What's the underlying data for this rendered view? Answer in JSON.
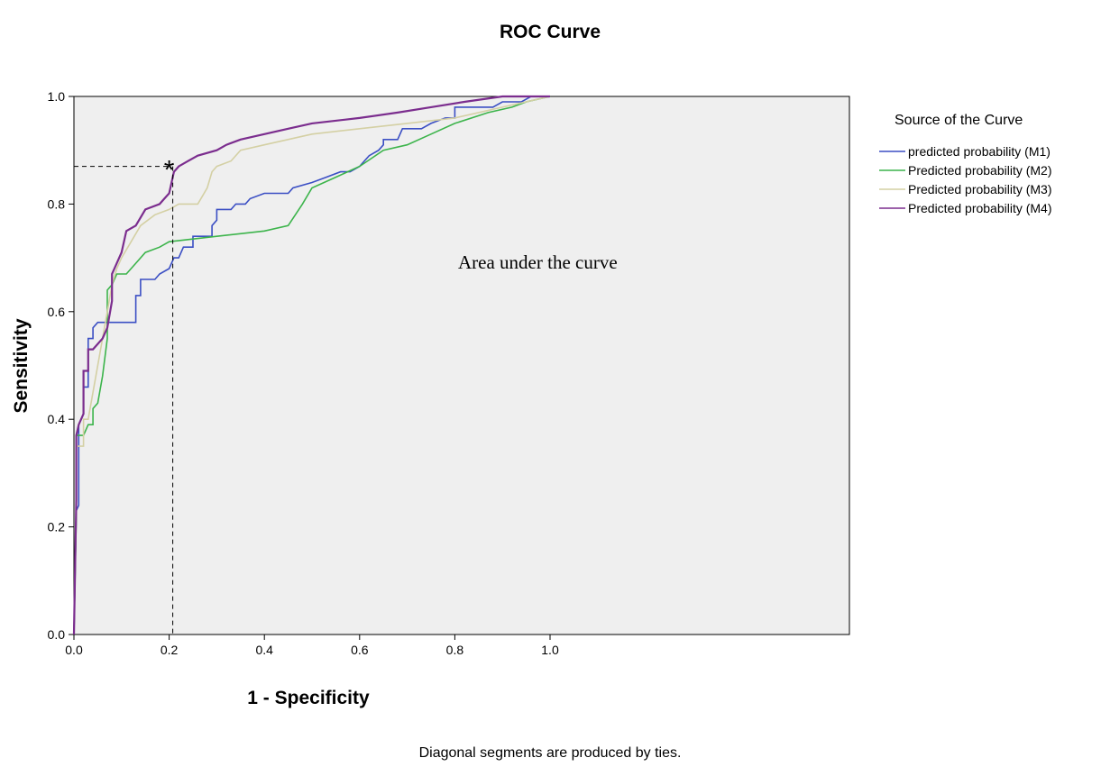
{
  "chart_data": {
    "type": "line",
    "title": "ROC Curve",
    "xlabel": "1 - Specificity",
    "ylabel": "Sensitivity",
    "xlim": [
      0,
      1.0
    ],
    "ylim": [
      0,
      1.0
    ],
    "x_ticks": [
      "0.0",
      "0.2",
      "0.4",
      "0.6",
      "0.8",
      "1.0"
    ],
    "y_ticks": [
      "0.0",
      "0.2",
      "0.4",
      "0.6",
      "0.8",
      "1.0"
    ],
    "grid": false,
    "background": "#efefef",
    "legend": {
      "title": "Source of the Curve",
      "placement": "right-top"
    },
    "annotation": "Area under the curve",
    "footnote": "Diagonal segments are produced by ties.",
    "marker": {
      "symbol": "*",
      "x": 0.2,
      "y": 0.87,
      "style": "dashed-guides"
    },
    "series": [
      {
        "name": "predicted probability (M1)",
        "color": "#3b4fc4",
        "points": [
          [
            0,
            0
          ],
          [
            0.005,
            0.23
          ],
          [
            0.01,
            0.24
          ],
          [
            0.01,
            0.39
          ],
          [
            0.02,
            0.41
          ],
          [
            0.02,
            0.46
          ],
          [
            0.03,
            0.46
          ],
          [
            0.03,
            0.55
          ],
          [
            0.04,
            0.55
          ],
          [
            0.04,
            0.57
          ],
          [
            0.05,
            0.58
          ],
          [
            0.07,
            0.58
          ],
          [
            0.07,
            0.58
          ],
          [
            0.13,
            0.58
          ],
          [
            0.13,
            0.63
          ],
          [
            0.14,
            0.63
          ],
          [
            0.14,
            0.66
          ],
          [
            0.17,
            0.66
          ],
          [
            0.18,
            0.67
          ],
          [
            0.2,
            0.68
          ],
          [
            0.21,
            0.7
          ],
          [
            0.22,
            0.7
          ],
          [
            0.23,
            0.72
          ],
          [
            0.25,
            0.72
          ],
          [
            0.25,
            0.74
          ],
          [
            0.29,
            0.74
          ],
          [
            0.29,
            0.76
          ],
          [
            0.3,
            0.77
          ],
          [
            0.3,
            0.79
          ],
          [
            0.33,
            0.79
          ],
          [
            0.34,
            0.8
          ],
          [
            0.36,
            0.8
          ],
          [
            0.37,
            0.81
          ],
          [
            0.4,
            0.82
          ],
          [
            0.45,
            0.82
          ],
          [
            0.46,
            0.83
          ],
          [
            0.5,
            0.84
          ],
          [
            0.53,
            0.85
          ],
          [
            0.56,
            0.86
          ],
          [
            0.58,
            0.86
          ],
          [
            0.6,
            0.87
          ],
          [
            0.61,
            0.88
          ],
          [
            0.62,
            0.89
          ],
          [
            0.64,
            0.9
          ],
          [
            0.65,
            0.91
          ],
          [
            0.65,
            0.92
          ],
          [
            0.68,
            0.92
          ],
          [
            0.69,
            0.94
          ],
          [
            0.73,
            0.94
          ],
          [
            0.75,
            0.95
          ],
          [
            0.78,
            0.96
          ],
          [
            0.8,
            0.96
          ],
          [
            0.8,
            0.98
          ],
          [
            0.88,
            0.98
          ],
          [
            0.9,
            0.99
          ],
          [
            0.94,
            0.99
          ],
          [
            0.96,
            1.0
          ],
          [
            1.0,
            1.0
          ]
        ]
      },
      {
        "name": "Predicted probability (M2)",
        "color": "#3cb44b",
        "points": [
          [
            0,
            0
          ],
          [
            0.005,
            0.22
          ],
          [
            0.005,
            0.37
          ],
          [
            0.02,
            0.37
          ],
          [
            0.03,
            0.39
          ],
          [
            0.04,
            0.39
          ],
          [
            0.04,
            0.42
          ],
          [
            0.05,
            0.43
          ],
          [
            0.06,
            0.48
          ],
          [
            0.07,
            0.55
          ],
          [
            0.07,
            0.64
          ],
          [
            0.08,
            0.65
          ],
          [
            0.09,
            0.67
          ],
          [
            0.11,
            0.67
          ],
          [
            0.13,
            0.69
          ],
          [
            0.15,
            0.71
          ],
          [
            0.18,
            0.72
          ],
          [
            0.2,
            0.73
          ],
          [
            0.3,
            0.74
          ],
          [
            0.4,
            0.75
          ],
          [
            0.45,
            0.76
          ],
          [
            0.48,
            0.8
          ],
          [
            0.5,
            0.83
          ],
          [
            0.55,
            0.85
          ],
          [
            0.6,
            0.87
          ],
          [
            0.65,
            0.9
          ],
          [
            0.7,
            0.91
          ],
          [
            0.75,
            0.93
          ],
          [
            0.8,
            0.95
          ],
          [
            0.87,
            0.97
          ],
          [
            0.92,
            0.98
          ],
          [
            0.95,
            0.99
          ],
          [
            1.0,
            1.0
          ]
        ]
      },
      {
        "name": "Predicted probability (M3)",
        "color": "#d4d0a4",
        "points": [
          [
            0,
            0
          ],
          [
            0.005,
            0.24
          ],
          [
            0.005,
            0.35
          ],
          [
            0.02,
            0.35
          ],
          [
            0.02,
            0.4
          ],
          [
            0.03,
            0.4
          ],
          [
            0.04,
            0.45
          ],
          [
            0.05,
            0.5
          ],
          [
            0.06,
            0.55
          ],
          [
            0.07,
            0.6
          ],
          [
            0.08,
            0.65
          ],
          [
            0.09,
            0.68
          ],
          [
            0.1,
            0.7
          ],
          [
            0.12,
            0.73
          ],
          [
            0.14,
            0.76
          ],
          [
            0.17,
            0.78
          ],
          [
            0.2,
            0.79
          ],
          [
            0.22,
            0.8
          ],
          [
            0.26,
            0.8
          ],
          [
            0.28,
            0.83
          ],
          [
            0.29,
            0.86
          ],
          [
            0.3,
            0.87
          ],
          [
            0.33,
            0.88
          ],
          [
            0.35,
            0.9
          ],
          [
            0.4,
            0.91
          ],
          [
            0.5,
            0.93
          ],
          [
            0.6,
            0.94
          ],
          [
            0.7,
            0.95
          ],
          [
            0.8,
            0.96
          ],
          [
            0.9,
            0.98
          ],
          [
            1.0,
            1.0
          ]
        ]
      },
      {
        "name": "Predicted probability (M4)",
        "color": "#7b2d8e",
        "points": [
          [
            0,
            0
          ],
          [
            0.005,
            0.25
          ],
          [
            0.005,
            0.37
          ],
          [
            0.01,
            0.39
          ],
          [
            0.02,
            0.41
          ],
          [
            0.02,
            0.49
          ],
          [
            0.03,
            0.49
          ],
          [
            0.03,
            0.53
          ],
          [
            0.04,
            0.53
          ],
          [
            0.05,
            0.54
          ],
          [
            0.06,
            0.55
          ],
          [
            0.07,
            0.57
          ],
          [
            0.08,
            0.62
          ],
          [
            0.08,
            0.67
          ],
          [
            0.09,
            0.69
          ],
          [
            0.1,
            0.71
          ],
          [
            0.11,
            0.75
          ],
          [
            0.13,
            0.76
          ],
          [
            0.15,
            0.79
          ],
          [
            0.18,
            0.8
          ],
          [
            0.19,
            0.81
          ],
          [
            0.2,
            0.82
          ],
          [
            0.21,
            0.86
          ],
          [
            0.22,
            0.87
          ],
          [
            0.24,
            0.88
          ],
          [
            0.26,
            0.89
          ],
          [
            0.3,
            0.9
          ],
          [
            0.32,
            0.91
          ],
          [
            0.35,
            0.92
          ],
          [
            0.4,
            0.93
          ],
          [
            0.45,
            0.94
          ],
          [
            0.5,
            0.95
          ],
          [
            0.6,
            0.96
          ],
          [
            0.68,
            0.97
          ],
          [
            0.75,
            0.98
          ],
          [
            0.82,
            0.99
          ],
          [
            0.9,
            1.0
          ],
          [
            1.0,
            1.0
          ]
        ]
      }
    ]
  }
}
